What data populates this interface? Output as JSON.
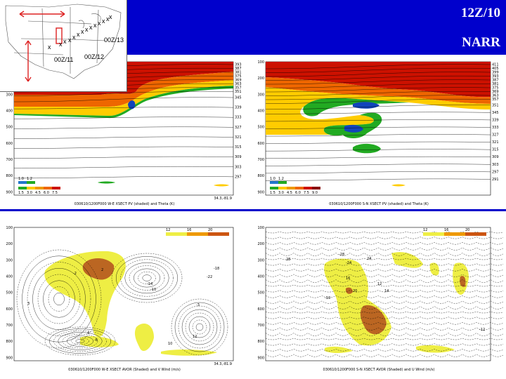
{
  "header": {
    "time_label": "12Z/10",
    "dataset_label": "NARR",
    "banner_color": "#0000cc"
  },
  "inset_map": {
    "track_labels": [
      "00Z/11",
      "00Z/12",
      "00Z/13"
    ],
    "track_marker": "x",
    "arrow_color": "#dd2222"
  },
  "chart_data": [
    {
      "type": "heatmap",
      "panel": "top-left",
      "pressure_ticks": [
        "100",
        "200",
        "300",
        "400",
        "500",
        "600",
        "700",
        "800",
        "900"
      ],
      "theta_labels": [
        "393",
        "387",
        "381",
        "375",
        "369",
        "363",
        "357",
        "351",
        "345",
        "339",
        "333",
        "327",
        "321",
        "315",
        "309",
        "303",
        "297"
      ],
      "legend_row1": [
        "1.0",
        "1.2"
      ],
      "legend_row2": [
        "1.5",
        "3.0",
        "4.5",
        "6.0",
        "7.5"
      ],
      "lat_lon": "34.3,-81.9",
      "caption": "030610/1200F000 W-E XSECT PV (shaded) and Theta (K)"
    },
    {
      "type": "heatmap",
      "panel": "top-right",
      "pressure_ticks": [
        "100",
        "200",
        "300",
        "400",
        "500",
        "600",
        "700",
        "800",
        "900"
      ],
      "theta_labels": [
        "411",
        "405",
        "399",
        "393",
        "387",
        "381",
        "375",
        "369",
        "363",
        "357",
        "351",
        "345",
        "339",
        "333",
        "327",
        "321",
        "315",
        "309",
        "303",
        "297",
        "291"
      ],
      "legend_row1": [
        "1.0",
        "1.2"
      ],
      "legend_row2": [
        "1.5",
        "3.0",
        "4.5",
        "6.0",
        "7.5",
        "9.0"
      ],
      "caption": "030610/1200F000 S-N XSECT PV (shaded) and Theta (K)"
    },
    {
      "type": "heatmap",
      "panel": "bottom-left",
      "pressure_ticks": [
        "100",
        "200",
        "300",
        "400",
        "500",
        "600",
        "700",
        "800",
        "900"
      ],
      "legend": [
        "12",
        "16",
        "20"
      ],
      "contour_labels": [
        "-2",
        "2",
        "3",
        "-3",
        "4",
        "-6",
        "12",
        "10",
        "-14",
        "-10",
        "-18",
        "-22"
      ],
      "lat_lon": "34.3,-81.9",
      "caption": "030610/1200F000 W-E XSECT AVOR (Shaded) and V Wind (m/s)"
    },
    {
      "type": "heatmap",
      "panel": "bottom-right",
      "pressure_ticks": [
        "100",
        "200",
        "300",
        "400",
        "500",
        "600",
        "700",
        "800",
        "900"
      ],
      "legend": [
        "12",
        "16",
        "20"
      ],
      "contour_labels": [
        "-28",
        "-24",
        "28",
        "24",
        "16",
        "12",
        "-10",
        "20",
        "14",
        "-12"
      ],
      "caption": "030610/1200F000 S-N XSECT AVOR (Shaded) and U Wind (m/s)"
    }
  ]
}
